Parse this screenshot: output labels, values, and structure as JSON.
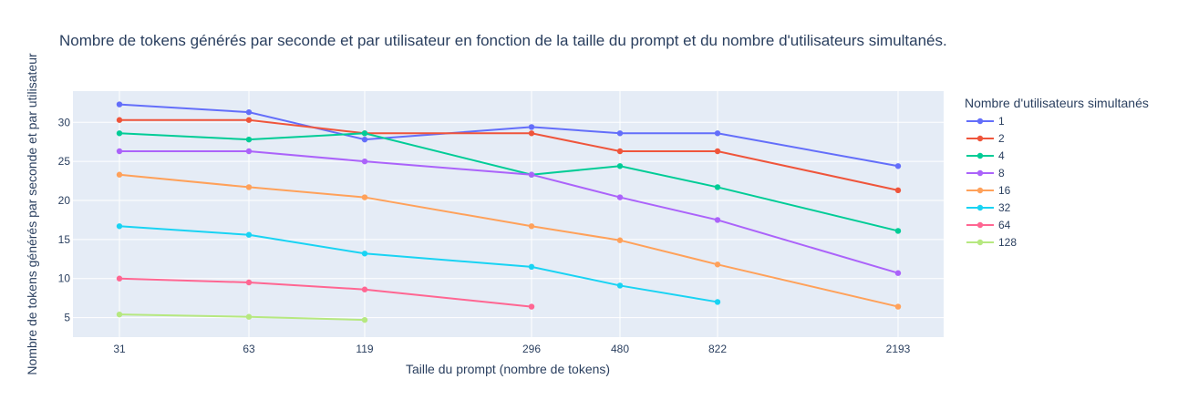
{
  "chart_data": {
    "type": "line",
    "title": "Nombre de tokens générés par seconde et par utilisateur en fonction de la taille du prompt et du nombre d'utilisateurs simultanés.",
    "xlabel": "Taille du prompt (nombre de tokens)",
    "ylabel": "Nombre de tokens générés par seconde et par utilisateur",
    "categories": [
      "31",
      "63",
      "119",
      "296",
      "480",
      "822",
      "2193"
    ],
    "yticks": [
      5,
      10,
      15,
      20,
      25,
      30
    ],
    "ylim": [
      2.5,
      34
    ],
    "grid": true,
    "legend_title": "Nombre d'utilisateurs simultanés",
    "legend_position": "right",
    "series": [
      {
        "name": "1",
        "color": "#636efa",
        "values": [
          32.3,
          31.3,
          27.8,
          29.4,
          28.6,
          28.6,
          24.4
        ]
      },
      {
        "name": "2",
        "color": "#ef553b",
        "values": [
          30.3,
          30.3,
          28.6,
          28.6,
          26.3,
          26.3,
          21.3
        ]
      },
      {
        "name": "4",
        "color": "#00cc96",
        "values": [
          28.6,
          27.8,
          28.6,
          23.3,
          24.4,
          21.7,
          16.1
        ]
      },
      {
        "name": "8",
        "color": "#ab63fa",
        "values": [
          26.3,
          26.3,
          25.0,
          23.3,
          20.4,
          17.5,
          10.7
        ]
      },
      {
        "name": "16",
        "color": "#ffa15a",
        "values": [
          23.3,
          21.7,
          20.4,
          16.7,
          14.9,
          11.8,
          6.4
        ]
      },
      {
        "name": "32",
        "color": "#19d3f3",
        "values": [
          16.7,
          15.6,
          13.2,
          11.5,
          9.1,
          7.0,
          null
        ]
      },
      {
        "name": "64",
        "color": "#ff6692",
        "values": [
          10.0,
          9.5,
          8.6,
          6.4,
          null,
          null,
          null
        ]
      },
      {
        "name": "128",
        "color": "#b6e880",
        "values": [
          5.4,
          5.1,
          4.7,
          null,
          null,
          null,
          null
        ]
      }
    ]
  }
}
